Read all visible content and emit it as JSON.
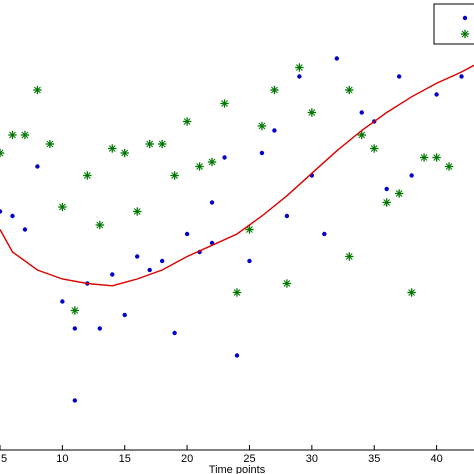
{
  "chart_data": {
    "type": "scatter",
    "xlabel": "Time points",
    "ylabel": "",
    "title": "",
    "xlim": [
      5,
      43
    ],
    "ylim": [
      0,
      1
    ],
    "x_ticks": [
      5,
      10,
      15,
      20,
      25,
      30,
      35,
      40
    ],
    "legend": {
      "placement": "top-right",
      "entries": [
        {
          "marker": "dot",
          "color": "#0000cc"
        },
        {
          "marker": "star",
          "color": "#007700"
        }
      ]
    },
    "grid": false,
    "series": [
      {
        "marker": "dot",
        "color": "#0000cc",
        "points": [
          [
            5,
            0.53
          ],
          [
            6,
            0.52
          ],
          [
            7,
            0.49
          ],
          [
            8,
            0.63
          ],
          [
            10,
            0.33
          ],
          [
            11,
            0.27
          ],
          [
            11,
            0.11
          ],
          [
            12,
            0.37
          ],
          [
            13,
            0.27
          ],
          [
            14,
            0.39
          ],
          [
            15,
            0.3
          ],
          [
            16,
            0.43
          ],
          [
            17,
            0.4
          ],
          [
            18,
            0.42
          ],
          [
            19,
            0.26
          ],
          [
            20,
            0.48
          ],
          [
            21,
            0.44
          ],
          [
            22,
            0.46
          ],
          [
            22,
            0.55
          ],
          [
            23,
            0.65
          ],
          [
            24,
            0.21
          ],
          [
            25,
            0.42
          ],
          [
            26,
            0.66
          ],
          [
            27,
            0.71
          ],
          [
            28,
            0.52
          ],
          [
            29,
            0.83
          ],
          [
            30,
            0.61
          ],
          [
            31,
            0.48
          ],
          [
            32,
            0.87
          ],
          [
            34,
            0.75
          ],
          [
            35,
            0.73
          ],
          [
            36,
            0.58
          ],
          [
            37,
            0.83
          ],
          [
            38,
            0.61
          ],
          [
            40,
            0.79
          ],
          [
            42,
            0.83
          ]
        ]
      },
      {
        "marker": "star",
        "color": "#007700",
        "points": [
          [
            5,
            0.66
          ],
          [
            6,
            0.7
          ],
          [
            7,
            0.7
          ],
          [
            8,
            0.8
          ],
          [
            9,
            0.68
          ],
          [
            10,
            0.54
          ],
          [
            11,
            0.31
          ],
          [
            12,
            0.61
          ],
          [
            13,
            0.5
          ],
          [
            14,
            0.67
          ],
          [
            15,
            0.66
          ],
          [
            16,
            0.53
          ],
          [
            17,
            0.68
          ],
          [
            18,
            0.68
          ],
          [
            19,
            0.61
          ],
          [
            20,
            0.73
          ],
          [
            21,
            0.63
          ],
          [
            22,
            0.64
          ],
          [
            23,
            0.77
          ],
          [
            24,
            0.35
          ],
          [
            25,
            0.49
          ],
          [
            26,
            0.72
          ],
          [
            27,
            0.8
          ],
          [
            28,
            0.37
          ],
          [
            29,
            0.85
          ],
          [
            30,
            0.75
          ],
          [
            33,
            0.8
          ],
          [
            33,
            0.43
          ],
          [
            34,
            0.7
          ],
          [
            35,
            0.67
          ],
          [
            36,
            0.55
          ],
          [
            37,
            0.57
          ],
          [
            38,
            0.35
          ],
          [
            39,
            0.65
          ],
          [
            40,
            0.65
          ],
          [
            41,
            0.63
          ]
        ]
      },
      {
        "marker": "line",
        "color": "#dd0000",
        "points": [
          [
            5,
            0.49
          ],
          [
            6,
            0.44
          ],
          [
            8,
            0.4
          ],
          [
            10,
            0.38
          ],
          [
            12,
            0.37
          ],
          [
            14,
            0.365
          ],
          [
            16,
            0.38
          ],
          [
            18,
            0.4
          ],
          [
            20,
            0.43
          ],
          [
            22,
            0.455
          ],
          [
            24,
            0.48
          ],
          [
            26,
            0.52
          ],
          [
            28,
            0.565
          ],
          [
            30,
            0.615
          ],
          [
            32,
            0.665
          ],
          [
            34,
            0.71
          ],
          [
            36,
            0.75
          ],
          [
            38,
            0.785
          ],
          [
            40,
            0.815
          ],
          [
            42,
            0.84
          ],
          [
            43,
            0.855
          ]
        ]
      }
    ]
  }
}
